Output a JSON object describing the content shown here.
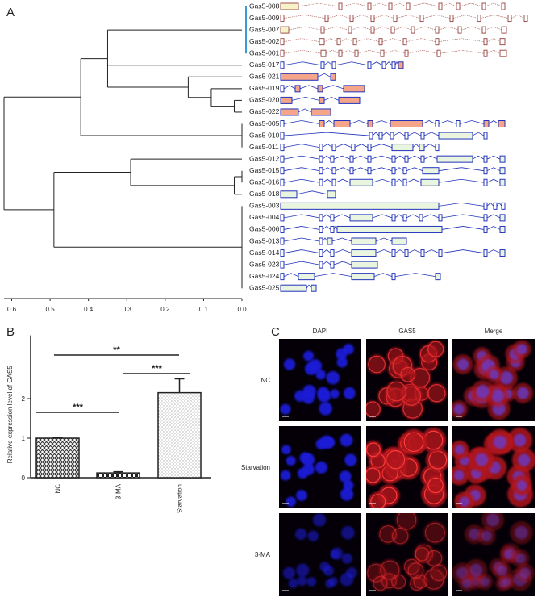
{
  "panel_labels": [
    "A",
    "B",
    "C"
  ],
  "chart_data": [
    {
      "type": "dendrogram",
      "xlim": [
        0.62,
        0
      ],
      "xticks": [
        0.6,
        0.5,
        0.4,
        0.3,
        0.2,
        0.1,
        {
          "value": 0,
          "label": "0.0"
        }
      ],
      "tree": {
        "height": 0.62,
        "children": [
          {
            "height": 0.42,
            "children": [
              {
                "height": 0.35,
                "children": [
                  {
                    "height": 0,
                    "color": "#3a9ad9",
                    "children": [
                      {
                        "label": "Gas5-008"
                      },
                      {
                        "label": "Gas5-009"
                      },
                      {
                        "label": "Gas5-007"
                      },
                      {
                        "label": "Gas5-002"
                      },
                      {
                        "label": "Gas5-001"
                      }
                    ]
                  },
                  {
                    "label": "Gas5-017"
                  },
                  {
                    "height": 0.14,
                    "children": [
                      {
                        "label": "Gas5-021"
                      },
                      {
                        "height": 0.08,
                        "children": [
                          {
                            "label": "Gas5-019"
                          },
                          {
                            "height": 0.02,
                            "children": [
                              {
                                "label": "Gas5-020"
                              },
                              {
                                "label": "Gas5-022"
                              }
                            ]
                          }
                        ]
                      }
                    ]
                  }
                ]
              },
              {
                "height": 0,
                "children": [
                  {
                    "label": "Gas5-005"
                  },
                  {
                    "label": "Gas5-010"
                  },
                  {
                    "label": "Gas5-011"
                  }
                ]
              }
            ]
          },
          {
            "height": 0.49,
            "children": [
              {
                "height": 0.29,
                "children": [
                  {
                    "label": "Gas5-012"
                  },
                  {
                    "height": 0.02,
                    "children": [
                      {
                        "height": 0,
                        "children": [
                          {
                            "label": "Gas5-015"
                          },
                          {
                            "label": "Gas5-016"
                          }
                        ]
                      },
                      {
                        "label": "Gas5-018"
                      }
                    ]
                  }
                ]
              },
              {
                "height": 0,
                "children": [
                  {
                    "label": "Gas5-003"
                  },
                  {
                    "label": "Gas5-004"
                  },
                  {
                    "label": "Gas5-006"
                  },
                  {
                    "label": "Gas5-013"
                  },
                  {
                    "label": "Gas5-014"
                  },
                  {
                    "label": "Gas5-023"
                  },
                  {
                    "label": "Gas5-024"
                  },
                  {
                    "label": "Gas5-025"
                  }
                ]
              }
            ]
          }
        ]
      }
    },
    {
      "type": "bar",
      "ylabel": "Relative expression level of GAS5",
      "categories": [
        "NC",
        "3-MA",
        "Starvation"
      ],
      "values": [
        1.0,
        0.12,
        2.15
      ],
      "errors": [
        0.02,
        0.03,
        0.35
      ],
      "ylim": [
        0,
        3.6
      ],
      "yticks": [
        0,
        1,
        2
      ],
      "annotations": [
        "**",
        "***",
        "***"
      ]
    }
  ],
  "microscopy": {
    "columns": [
      "DAPI",
      "GAS5",
      "Merge"
    ],
    "rows": [
      "NC",
      "Starvation",
      "3-MA"
    ]
  }
}
